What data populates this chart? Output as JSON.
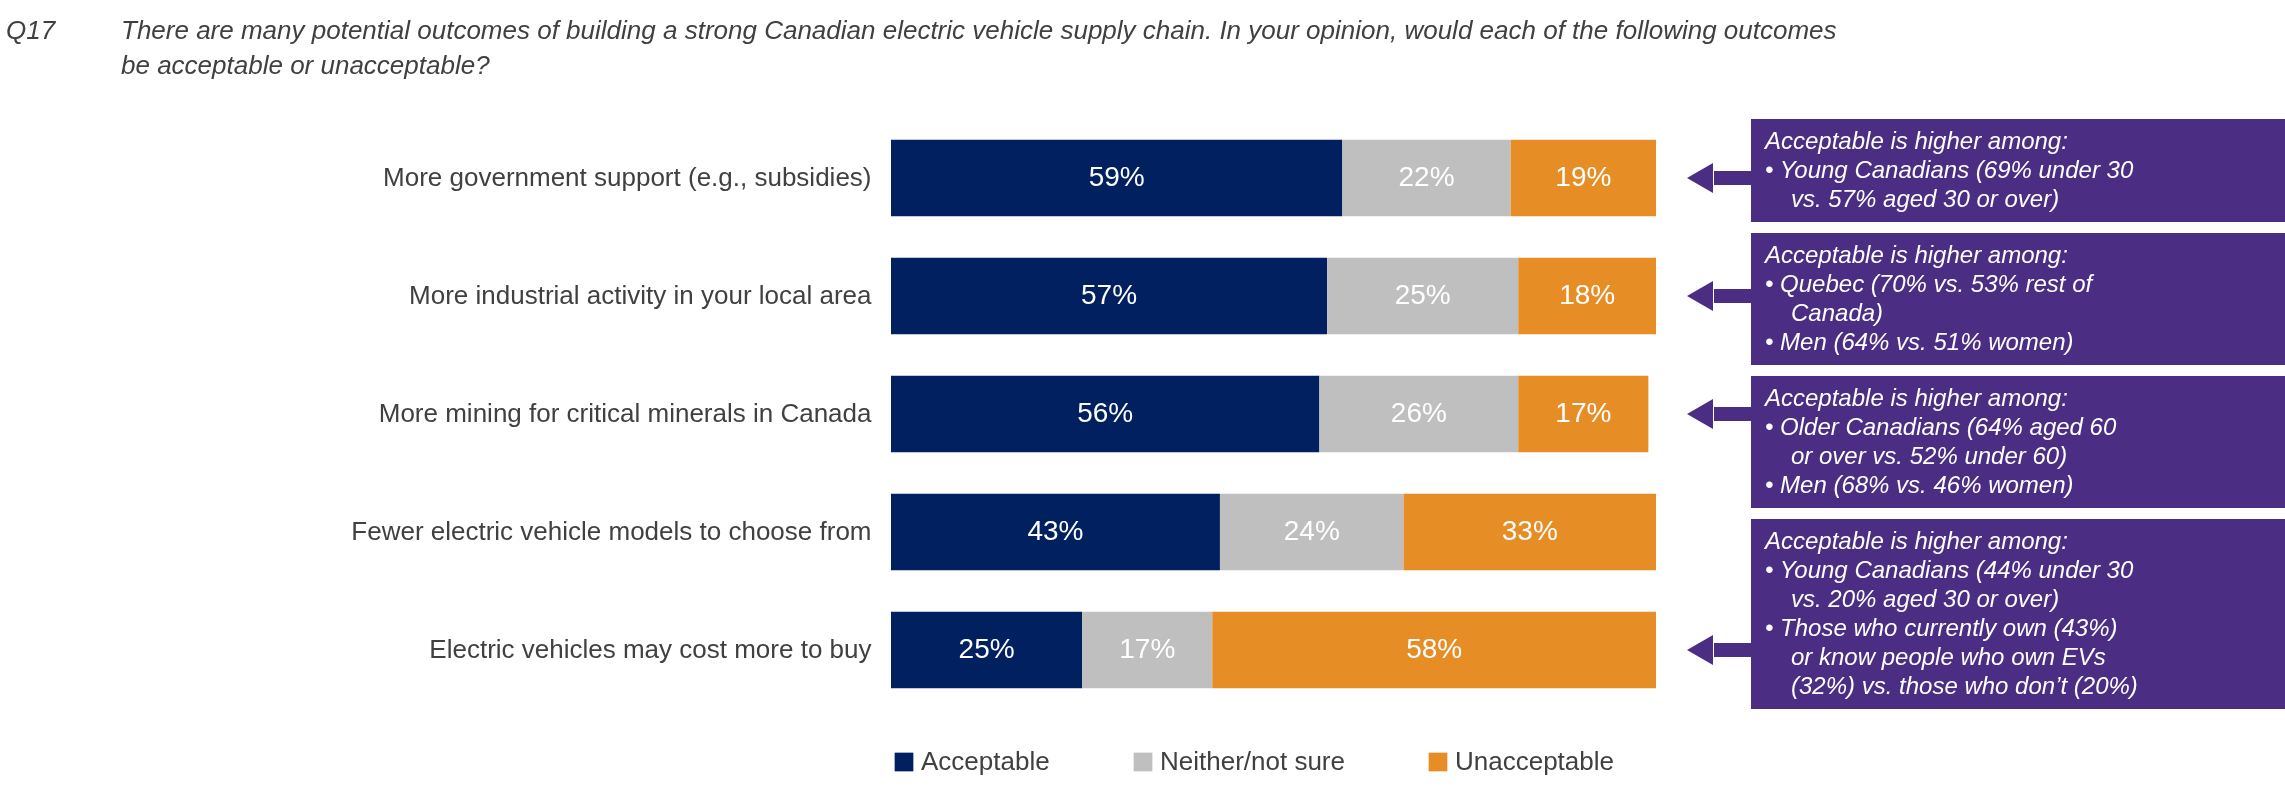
{
  "chart_data": {
    "type": "bar",
    "orientation": "horizontal",
    "stacked": true,
    "legend": "bottom",
    "title": "There are many potential outcomes of building a strong Canadian electric vehicle supply chain. In your opinion, would each of the following outcomes be acceptable or unacceptable?",
    "categories": [
      "More government support (e.g., subsidies)",
      "More industrial activity in your local area",
      "More mining for critical minerals in Canada",
      "Fewer electric vehicle models to choose from",
      "Electric vehicles may cost more to buy"
    ],
    "series": [
      {
        "name": "Acceptable",
        "color": "#002060",
        "values": [
          59,
          57,
          56,
          43,
          25
        ],
        "value_labels": [
          "59%",
          "57%",
          "56%",
          "43%",
          "25%"
        ]
      },
      {
        "name": "Neither/not sure",
        "color": "#bfbfbf",
        "values": [
          22,
          25,
          26,
          24,
          17
        ],
        "value_labels": [
          "22%",
          "25%",
          "26%",
          "24%",
          "17%"
        ]
      },
      {
        "name": "Unacceptable",
        "color": "#e68e25",
        "values": [
          19,
          18,
          17,
          33,
          58
        ],
        "value_labels": [
          "19%",
          "18%",
          "17%",
          "33%",
          "58%"
        ]
      }
    ],
    "annotations": [
      "Q17",
      "Acceptable is higher among:\n• Young Canadians (69% under 30\nvs.  57% aged 30 or over)",
      "Acceptable is higher among:\n• Quebec (70% vs. 53% rest of\nCanada)\n• Men (64% vs. 51% women)",
      "Acceptable is higher among:\n• Older Canadians (64% aged 60\nor over vs. 52% under 60)\n• Men (68% vs. 46% women)",
      "Acceptable is higher among:\n• Young Canadians (44% under 30\nvs. 20% aged 30 or over)\n• Those who currently own (43%)\nor know people who own EVs\n(32%) vs. those who don’t (20%)"
    ]
  }
}
